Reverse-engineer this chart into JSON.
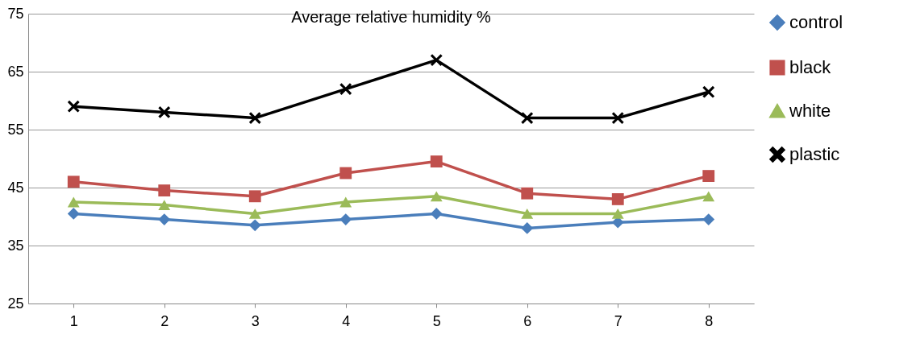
{
  "chart_data": {
    "type": "line",
    "title": "Average relative humidity %",
    "categories": [
      "1",
      "2",
      "3",
      "4",
      "5",
      "6",
      "7",
      "8"
    ],
    "series": [
      {
        "name": "control",
        "color": "#4a7ebb",
        "marker": "diamond",
        "values": [
          40.5,
          39.5,
          38.5,
          39.5,
          40.5,
          38,
          39,
          39.5
        ]
      },
      {
        "name": "black",
        "color": "#c0504d",
        "marker": "square",
        "values": [
          46,
          44.5,
          43.5,
          47.5,
          49.5,
          44,
          43,
          47
        ]
      },
      {
        "name": "white",
        "color": "#9bbb59",
        "marker": "triangle",
        "values": [
          42.5,
          42,
          40.5,
          42.5,
          43.5,
          40.5,
          40.5,
          43.5
        ]
      },
      {
        "name": "plastic",
        "color": "#000000",
        "marker": "cross",
        "values": [
          59,
          58,
          57,
          62,
          67,
          57,
          57,
          61.5
        ]
      }
    ],
    "ylim": [
      25,
      75
    ],
    "yticks": [
      25,
      35,
      45,
      55,
      65,
      75
    ],
    "grid": "y",
    "legend": "right"
  }
}
